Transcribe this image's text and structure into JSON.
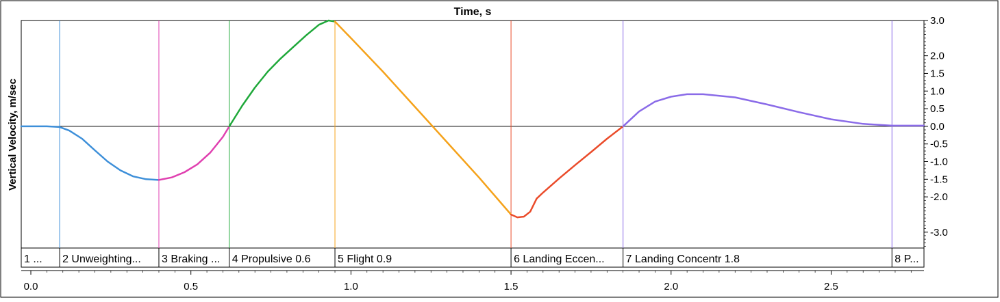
{
  "chart_data": {
    "type": "line",
    "title": "Time, s",
    "xlabel": "",
    "ylabel": "Vertical Velocity, m/sec",
    "xlim": [
      -0.03,
      2.79
    ],
    "ylim": [
      -3.45,
      3.0
    ],
    "y_axis_side": "right",
    "grid": false,
    "legend": "none",
    "x_ticks": [
      0.0,
      0.5,
      1.0,
      1.5,
      2.0,
      2.5
    ],
    "x_tick_labels": [
      "0.0",
      "0.5",
      "1.0",
      "1.5",
      "2.0",
      "2.5"
    ],
    "y_ticks": [
      3.0,
      2.0,
      1.5,
      1.0,
      0.5,
      0.0,
      -0.5,
      -1.0,
      -1.5,
      -2.0,
      -3.0
    ],
    "y_tick_labels": [
      "3.0",
      "2.0",
      "1.5",
      "1.0",
      "0.5",
      "0.0",
      "-0.5",
      "-1.0",
      "-1.5",
      "-2.0",
      "-3.0"
    ],
    "phases": [
      {
        "label": "1 ...",
        "start": -0.03,
        "end": 0.09,
        "color": "#4a90e2"
      },
      {
        "label": "2 Unweighting...",
        "start": 0.09,
        "end": 0.4,
        "color": "#3d8fd9"
      },
      {
        "label": "3 Braking ...",
        "start": 0.4,
        "end": 0.62,
        "color": "#e040b0"
      },
      {
        "label": "4 Propulsive 0.6",
        "start": 0.62,
        "end": 0.95,
        "color": "#1fa83a"
      },
      {
        "label": "5 Flight 0.9",
        "start": 0.95,
        "end": 1.5,
        "color": "#f5a21a"
      },
      {
        "label": "6 Landing Eccen...",
        "start": 1.5,
        "end": 1.85,
        "color": "#ea4b2a"
      },
      {
        "label": "7 Landing Concentr 1.8",
        "start": 1.85,
        "end": 2.69,
        "color": "#8a6be8"
      },
      {
        "label": "8 P...",
        "start": 2.69,
        "end": 2.79,
        "color": "#8a6be8"
      }
    ],
    "series": [
      {
        "color": "#3d8fd9",
        "x": [
          -0.03,
          0.0,
          0.05,
          0.09,
          0.12,
          0.16,
          0.2,
          0.24,
          0.28,
          0.32,
          0.36,
          0.4
        ],
        "y": [
          0.0,
          0.0,
          0.0,
          -0.02,
          -0.12,
          -0.35,
          -0.68,
          -1.0,
          -1.25,
          -1.42,
          -1.5,
          -1.52
        ]
      },
      {
        "color": "#e040b0",
        "x": [
          0.4,
          0.44,
          0.48,
          0.52,
          0.56,
          0.6,
          0.62
        ],
        "y": [
          -1.52,
          -1.45,
          -1.3,
          -1.08,
          -0.75,
          -0.3,
          0.0
        ]
      },
      {
        "color": "#1fa83a",
        "x": [
          0.62,
          0.66,
          0.7,
          0.74,
          0.78,
          0.82,
          0.86,
          0.9,
          0.93,
          0.95
        ],
        "y": [
          0.0,
          0.58,
          1.1,
          1.55,
          1.92,
          2.25,
          2.58,
          2.88,
          3.0,
          2.97
        ]
      },
      {
        "color": "#f5a21a",
        "x": [
          0.95,
          1.0,
          1.1,
          1.2,
          1.3,
          1.4,
          1.5
        ],
        "y": [
          2.97,
          2.5,
          1.55,
          0.55,
          -0.45,
          -1.45,
          -2.5
        ]
      },
      {
        "color": "#ea4b2a",
        "x": [
          1.5,
          1.52,
          1.54,
          1.56,
          1.58,
          1.6,
          1.65,
          1.7,
          1.75,
          1.8,
          1.85
        ],
        "y": [
          -2.5,
          -2.58,
          -2.56,
          -2.42,
          -2.05,
          -1.88,
          -1.48,
          -1.1,
          -0.73,
          -0.35,
          0.0
        ]
      },
      {
        "color": "#8a6be8",
        "x": [
          1.85,
          1.9,
          1.95,
          2.0,
          2.05,
          2.1,
          2.2,
          2.3,
          2.4,
          2.5,
          2.6,
          2.69,
          2.79
        ],
        "y": [
          0.0,
          0.42,
          0.7,
          0.84,
          0.91,
          0.91,
          0.82,
          0.62,
          0.4,
          0.2,
          0.07,
          0.02,
          0.02
        ]
      }
    ]
  }
}
